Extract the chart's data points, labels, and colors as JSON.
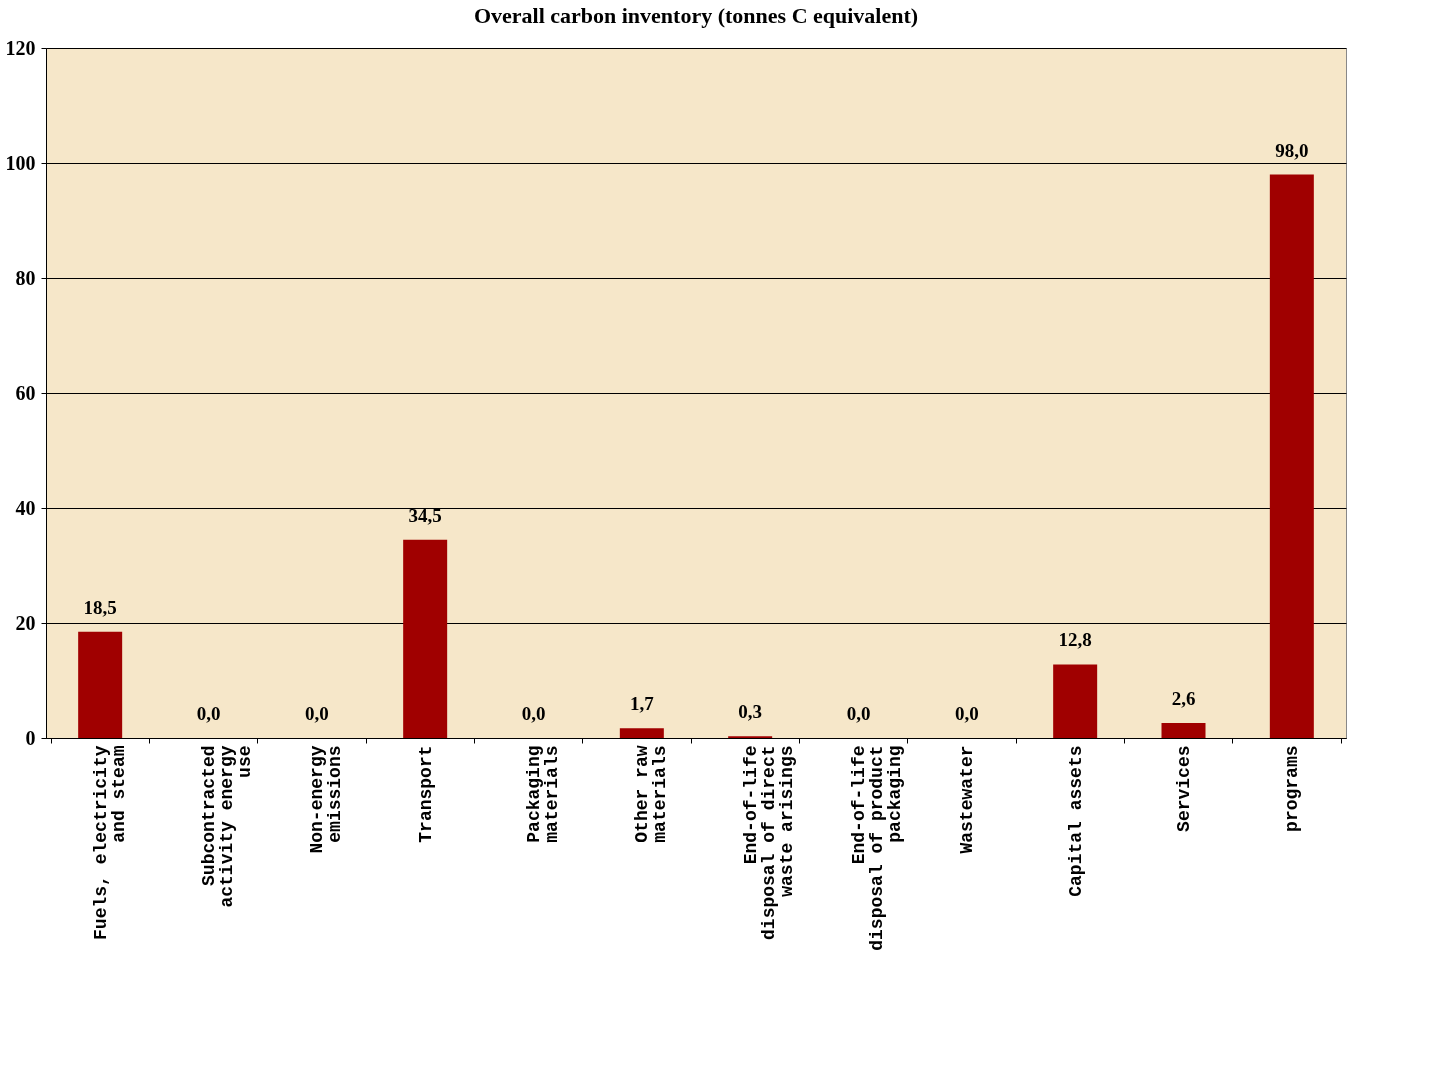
{
  "chart_data": {
    "type": "bar",
    "title": "Overall carbon inventory  (tonnes C equivalent)",
    "categories": [
      "Fuels, electricity\nand steam",
      "Subcontracted\nactivity energy\nuse",
      "Non-energy\nemissions",
      "Transport",
      "Packaging\nmaterials",
      "Other raw\nmaterials",
      "End-of-life\ndisposal of direct\nwaste arisings",
      "End-of-life\ndisposal of product\npackaging",
      "Wastewater",
      "Capital assets",
      "Services",
      "programs"
    ],
    "values": [
      18.5,
      0.0,
      0.0,
      34.5,
      0.0,
      1.7,
      0.3,
      0.0,
      0.0,
      12.8,
      2.6,
      98.0
    ],
    "value_labels": [
      "18,5",
      "0,0",
      "0,0",
      "34,5",
      "0,0",
      "1,7",
      "0,3",
      "0,0",
      "0,0",
      "12,8",
      "2,6",
      "98,0"
    ],
    "color": "#a00000",
    "ylim": [
      0,
      120
    ],
    "yticks": [
      0,
      20,
      40,
      60,
      80,
      100,
      120
    ],
    "grid": "y"
  }
}
